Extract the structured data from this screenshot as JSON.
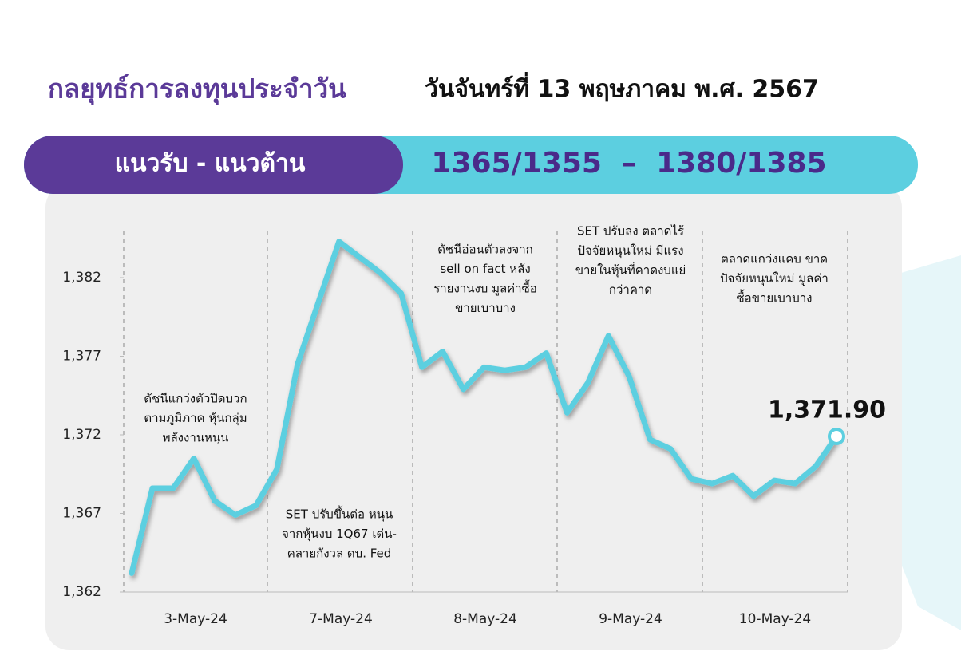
{
  "header": {
    "title": "กลยุทธ์การลงทุนประจำวัน",
    "date": "วันจันทร์ที่ 13 พฤษภาคม พ.ศ. 2567"
  },
  "banner": {
    "label": "แนวรับ - แนวต้าน",
    "levels": "1365/1355  –  1380/1385"
  },
  "chart_data": {
    "type": "line",
    "color": "#5ccfe0",
    "x_labels": [
      "3-May-24",
      "7-May-24",
      "8-May-24",
      "9-May-24",
      "10-May-24"
    ],
    "values": [
      1363.2,
      1368.6,
      1368.6,
      1370.5,
      1367.8,
      1366.9,
      1367.5,
      1369.8,
      1376.5,
      1380.4,
      1384.3,
      1383.3,
      1382.3,
      1381.0,
      1376.3,
      1377.3,
      1374.9,
      1376.3,
      1376.1,
      1376.3,
      1377.2,
      1373.4,
      1375.3,
      1378.3,
      1375.7,
      1371.7,
      1371.1,
      1369.2,
      1368.9,
      1369.4,
      1368.1,
      1369.1,
      1368.9,
      1370.0,
      1371.9
    ],
    "end_label": "1,371.90",
    "ylim": [
      1362,
      1385
    ],
    "yticks": [
      {
        "value": 1362,
        "label": "1,362"
      },
      {
        "value": 1367,
        "label": "1,367"
      },
      {
        "value": 1372,
        "label": "1,372"
      },
      {
        "value": 1377,
        "label": "1,377"
      },
      {
        "value": 1382,
        "label": "1,382"
      }
    ],
    "annotations": [
      [
        "ดัชนีแกว่งตัวปิดบวก",
        "ตามภูมิภาค หุ้นกลุ่ม",
        "พลังงานหนุน"
      ],
      [
        "SET ปรับขึ้นต่อ หนุน",
        "จากหุ้นงบ 1Q67 เด่น-",
        "คลายกังวล ดบ. Fed"
      ],
      [
        "ดัชนีอ่อนตัวลงจาก",
        "sell on fact หลัง",
        "รายงานงบ มูลค่าซื้อ",
        "ขายเบาบาง"
      ],
      [
        "SET ปรับลง ตลาดไร้",
        "ปัจจัยหนุนใหม่ มีแรง",
        "ขายในหุ้นที่คาดงบแย่",
        "กว่าคาด"
      ],
      [
        "ตลาดแกว่งแคบ ขาด",
        "ปัจจัยหนุนใหม่ มูลค่า",
        "ซื้อขายเบาบาง"
      ]
    ]
  }
}
